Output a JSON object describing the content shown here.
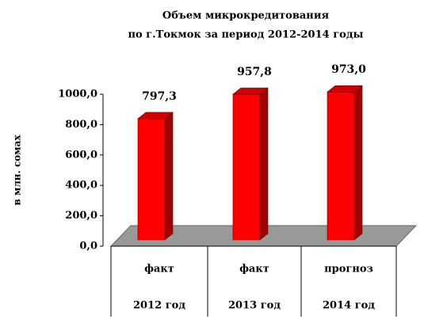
{
  "chart_data": {
    "type": "bar",
    "title": [
      "Объем микрокредитования",
      "по г.Токмок за период 2012-2014 годы"
    ],
    "ylabel": "в млн. сомах",
    "categories": [
      [
        "факт",
        "2012 год"
      ],
      [
        "факт",
        "2013 год"
      ],
      [
        "прогноз",
        "2014 год"
      ]
    ],
    "values": [
      797.3,
      957.8,
      973.0
    ],
    "value_labels": [
      "797,3",
      "957,8",
      "973,0"
    ],
    "color": "#ff0000",
    "ylim": [
      0,
      1000
    ],
    "yticks": [
      {
        "value": 0,
        "label": "0,0"
      },
      {
        "value": 200,
        "label": "200,0"
      },
      {
        "value": 400,
        "label": "400,0"
      },
      {
        "value": 600,
        "label": "600,0"
      },
      {
        "value": 800,
        "label": "800,0"
      },
      {
        "value": 1000,
        "label": "1000,0"
      }
    ]
  }
}
